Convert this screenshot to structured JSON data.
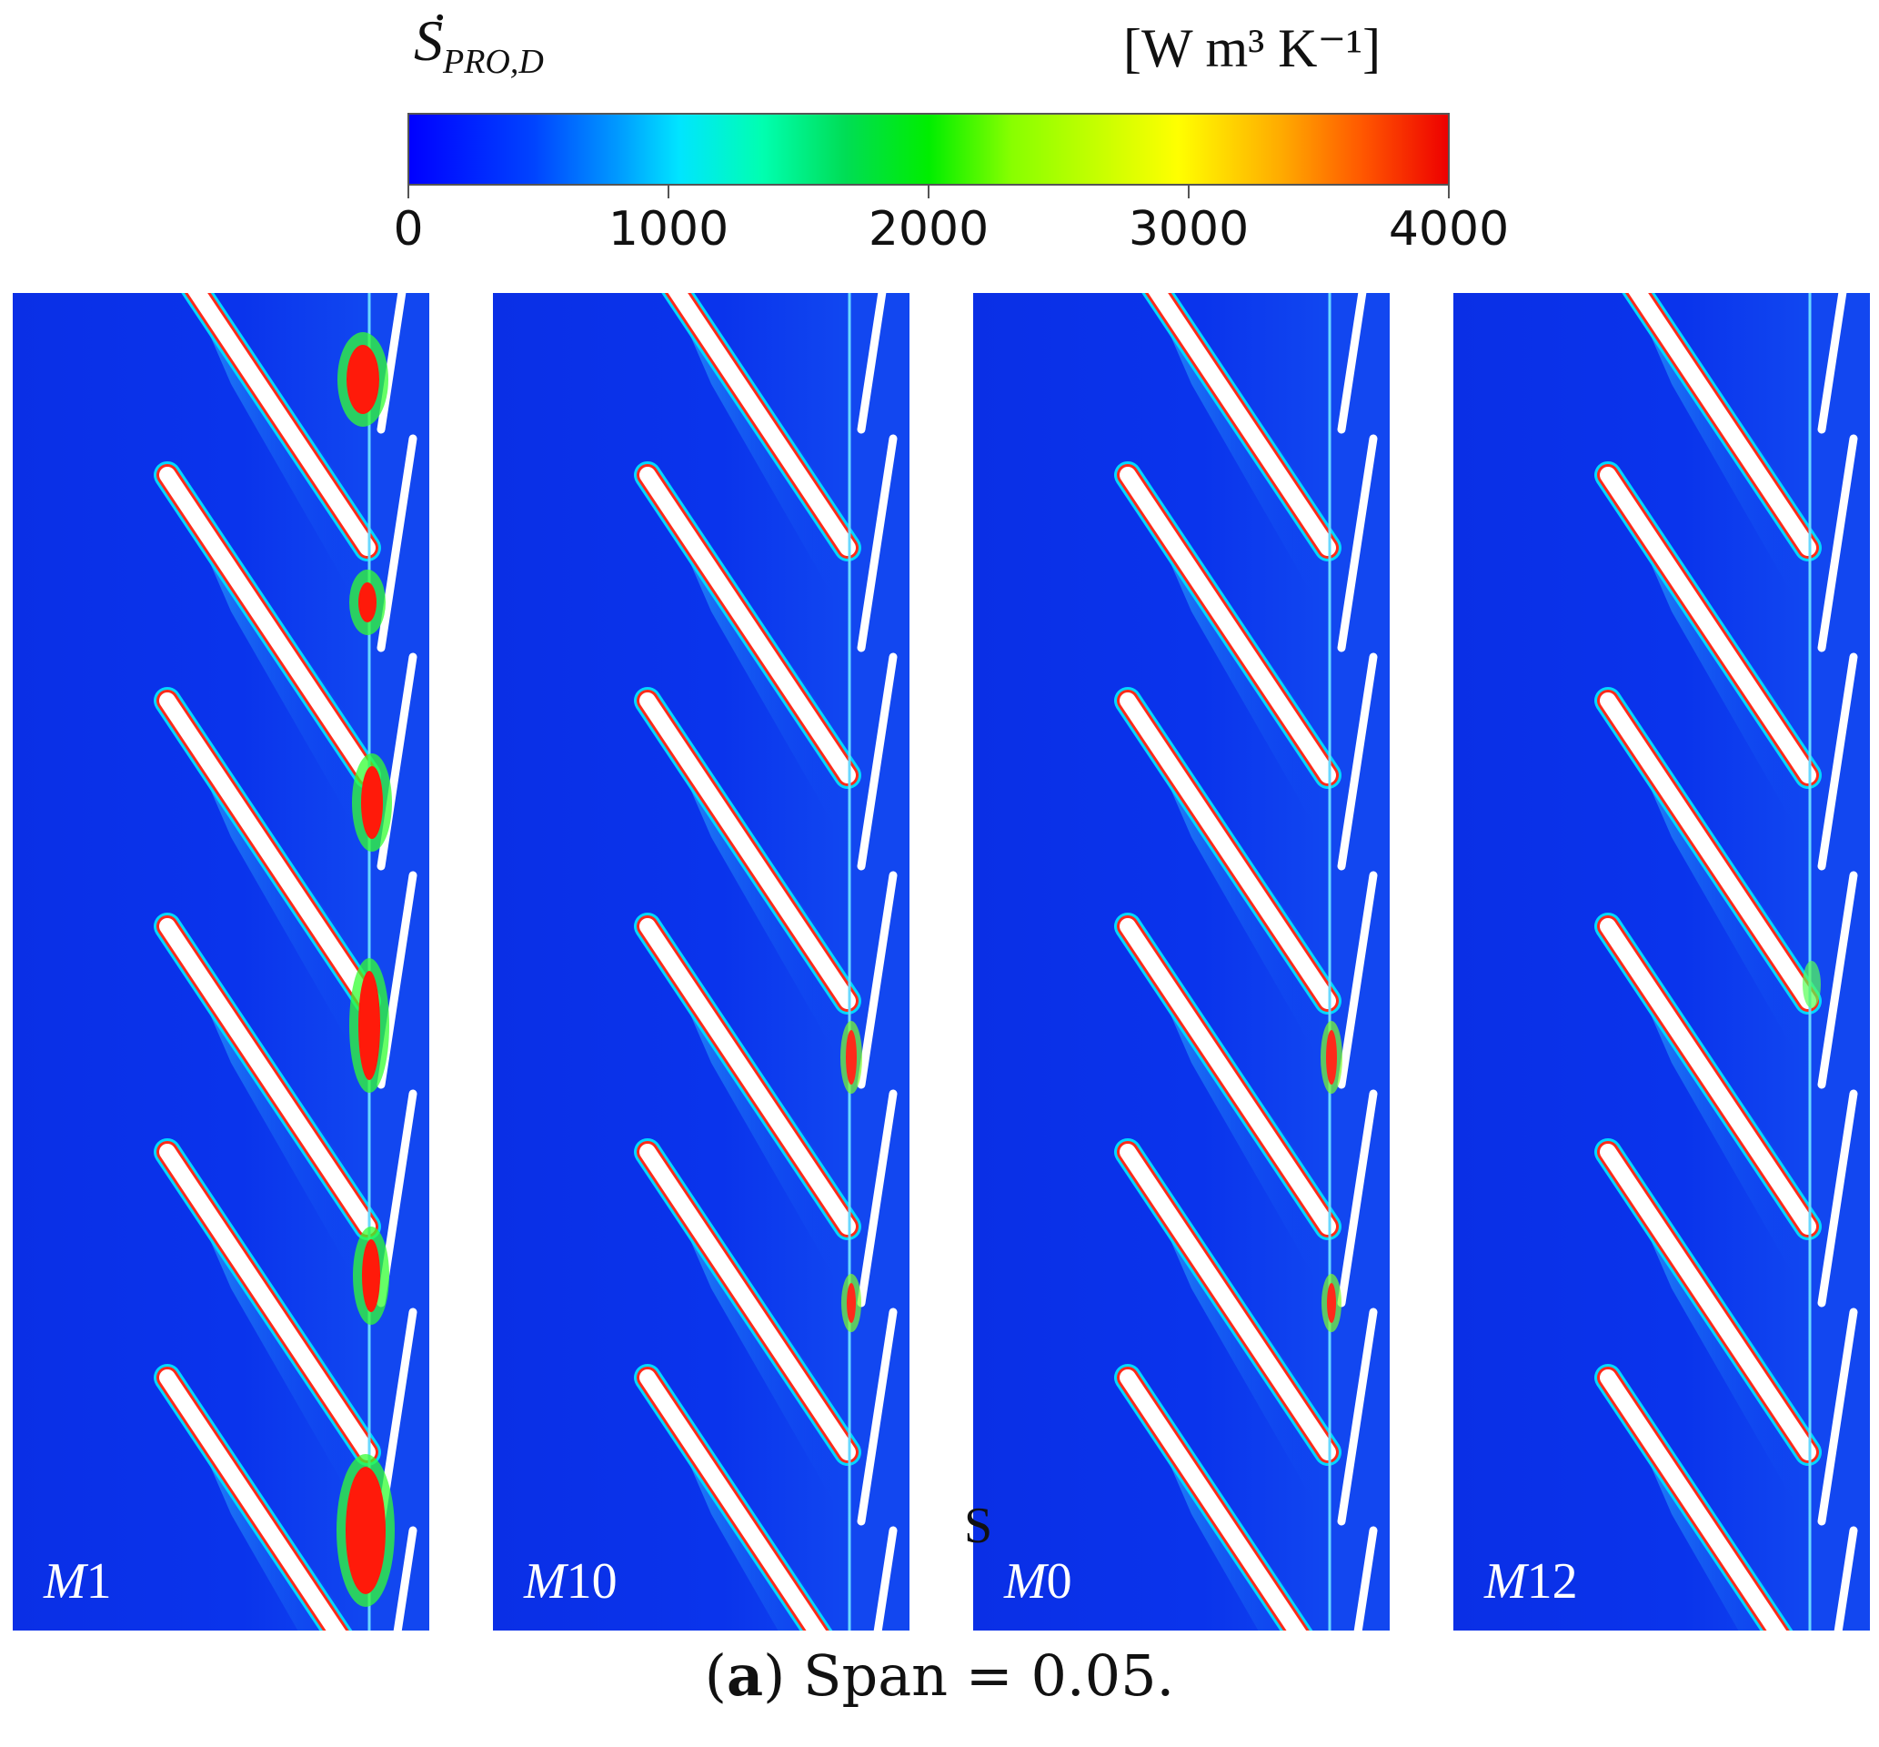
{
  "legend": {
    "symbol": "S",
    "dot": "˙",
    "subscript": "PRO,D",
    "unit": "[W m³ K⁻¹]",
    "colormap": [
      "#0000ff",
      "#00e5ff",
      "#00ee00",
      "#ffff00",
      "#ee0000"
    ],
    "ticks": [
      "0",
      "1000",
      "2000",
      "3000",
      "4000"
    ]
  },
  "panels": [
    {
      "label_italic": "M",
      "label_num": "1"
    },
    {
      "label_italic": "M",
      "label_num": "10"
    },
    {
      "label_italic": "M",
      "label_num": "0"
    },
    {
      "label_italic": "M",
      "label_num": "12"
    }
  ],
  "stray_text": "S",
  "caption": {
    "bold": "a",
    "text": "Span = 0.05."
  }
}
